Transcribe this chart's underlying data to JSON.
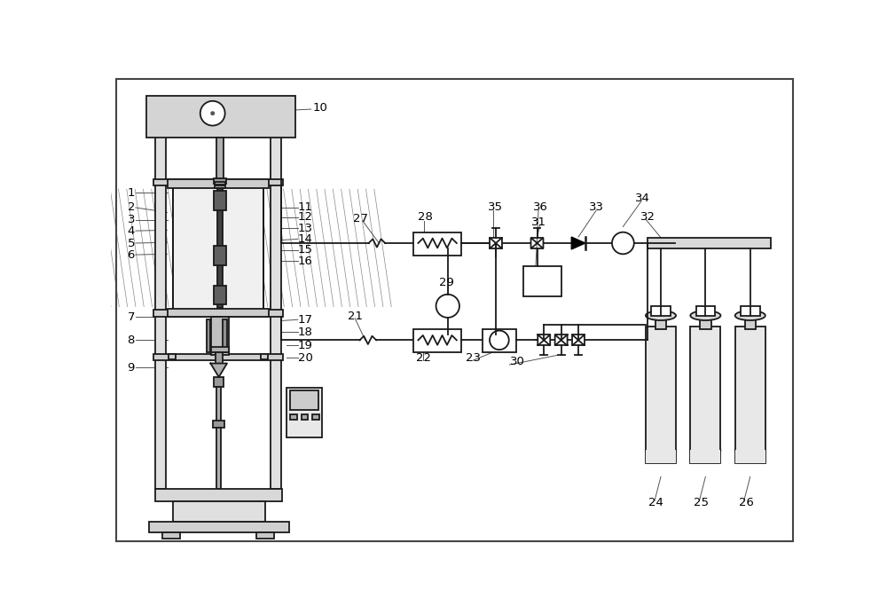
{
  "bg_color": "#ffffff",
  "line_color": "#1a1a1a",
  "lw": 1.3,
  "thin_lw": 0.8,
  "fig_width": 10.0,
  "fig_height": 6.92,
  "dpi": 100
}
